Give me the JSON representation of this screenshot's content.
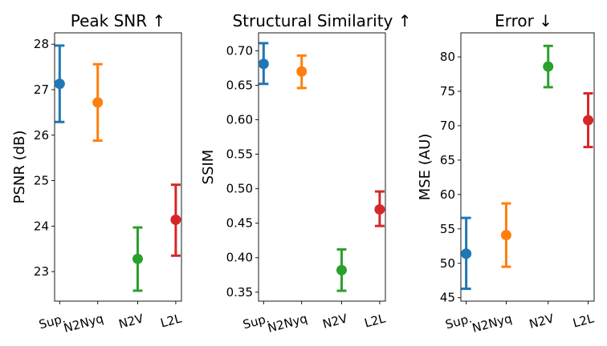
{
  "chart_data": [
    {
      "type": "scatter",
      "title": "Peak SNR ↑",
      "ylabel": "PSNR (dB)",
      "categories": [
        "Sup.",
        "N2Nyq",
        "N2V",
        "L2L"
      ],
      "colors": [
        "#1f77b4",
        "#ff7f0e",
        "#2ca02c",
        "#d62728"
      ],
      "means": [
        27.13,
        26.72,
        23.28,
        24.14
      ],
      "lower": [
        26.29,
        25.88,
        22.58,
        23.35
      ],
      "upper": [
        27.97,
        27.56,
        23.97,
        24.91
      ],
      "ylim": [
        22.35,
        28.25
      ],
      "yticks": [
        23,
        24,
        25,
        26,
        27,
        28
      ],
      "ytick_labels": [
        "23",
        "24",
        "25",
        "26",
        "27",
        "28"
      ]
    },
    {
      "type": "scatter",
      "title": "Structural Similarity ↑",
      "ylabel": "SSIM",
      "categories": [
        "Sup.",
        "N2Nyq",
        "N2V",
        "L2L"
      ],
      "colors": [
        "#1f77b4",
        "#ff7f0e",
        "#2ca02c",
        "#d62728"
      ],
      "means": [
        0.681,
        0.67,
        0.382,
        0.47
      ],
      "lower": [
        0.652,
        0.646,
        0.352,
        0.446
      ],
      "upper": [
        0.711,
        0.693,
        0.412,
        0.496
      ],
      "ylim": [
        0.337,
        0.726
      ],
      "yticks": [
        0.35,
        0.4,
        0.45,
        0.5,
        0.55,
        0.6,
        0.65,
        0.7
      ],
      "ytick_labels": [
        "0.35",
        "0.40",
        "0.45",
        "0.50",
        "0.55",
        "0.60",
        "0.65",
        "0.70"
      ]
    },
    {
      "type": "scatter",
      "title": "Error ↓",
      "ylabel": "MSE (AU)",
      "categories": [
        "Sup.",
        "N2Nyq",
        "N2V",
        "L2L"
      ],
      "colors": [
        "#1f77b4",
        "#ff7f0e",
        "#2ca02c",
        "#d62728"
      ],
      "means": [
        51.4,
        54.1,
        78.6,
        70.8
      ],
      "lower": [
        46.3,
        49.5,
        75.6,
        66.9
      ],
      "upper": [
        56.6,
        58.7,
        81.6,
        74.7
      ],
      "ylim": [
        44.5,
        83.5
      ],
      "yticks": [
        45,
        50,
        55,
        60,
        65,
        70,
        75,
        80
      ],
      "ytick_labels": [
        "45",
        "50",
        "55",
        "60",
        "65",
        "70",
        "75",
        "80"
      ]
    }
  ]
}
